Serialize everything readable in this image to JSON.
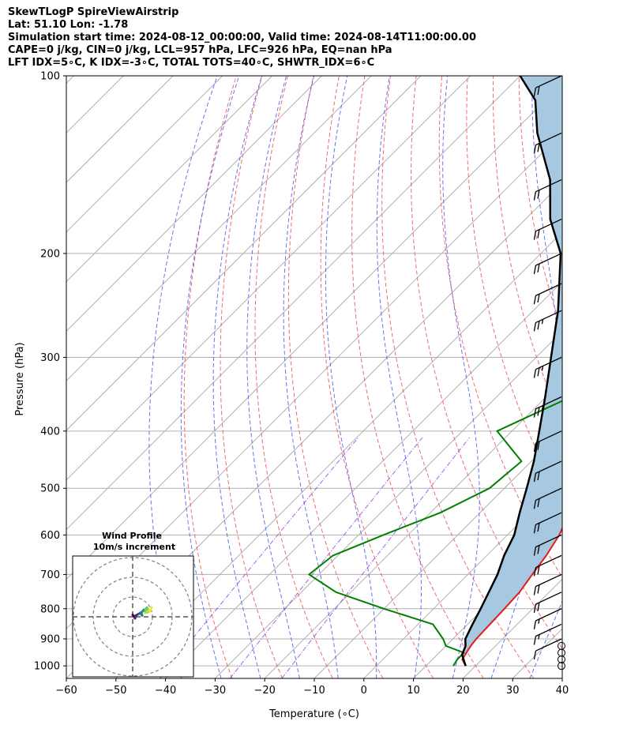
{
  "header": {
    "line1": "SkewTLogP SpireViewAirstrip",
    "line2": "Lat: 51.10   Lon: -1.78",
    "line3": "Simulation start time: 2024-08-12_00:00:00, Valid time: 2024-08-14T11:00:00.00",
    "line4": "CAPE=0 j/kg, CIN=0 j/kg, LCL=957 hPa, LFC=926 hPa, EQ=nan hPa",
    "line5": "LFT IDX=5∘C, K IDX=-3∘C, TOTAL TOTS=40∘C, SHWTR_IDX=6∘C"
  },
  "chart_data": {
    "type": "line",
    "title": "SkewTLogP SpireViewAirstrip",
    "xlabel": "Temperature (∘C)",
    "ylabel": "Pressure (hPa)",
    "xlim": [
      -60,
      40
    ],
    "ylim": [
      1050,
      100
    ],
    "yscale": "log",
    "x_ticks": [
      -60,
      -50,
      -40,
      -30,
      -20,
      -10,
      0,
      10,
      20,
      30,
      40
    ],
    "y_ticks": [
      100,
      200,
      300,
      400,
      500,
      600,
      700,
      800,
      900,
      1000
    ],
    "grid": true,
    "series": [
      {
        "name": "temperature",
        "color": "#e31a1c",
        "points": [
          [
            18,
            1000
          ],
          [
            16,
            975
          ],
          [
            15.5,
            950
          ],
          [
            15,
            925
          ],
          [
            14.7,
            900
          ],
          [
            14.5,
            850
          ],
          [
            14.3,
            800
          ],
          [
            14,
            750
          ],
          [
            13,
            700
          ],
          [
            12,
            650
          ],
          [
            10.5,
            600
          ],
          [
            8,
            550
          ],
          [
            5,
            500
          ],
          [
            2,
            450
          ],
          [
            -1,
            400
          ],
          [
            -4.3,
            350
          ],
          [
            -7.3,
            300
          ],
          [
            -9.5,
            250
          ],
          [
            -10.5,
            225
          ],
          [
            -12,
            200
          ],
          [
            -15,
            185
          ],
          [
            -16,
            175
          ],
          [
            -17,
            165
          ],
          [
            -19,
            150
          ],
          [
            -22,
            140
          ],
          [
            -27,
            125
          ],
          [
            -31,
            110
          ],
          [
            -34,
            100
          ]
        ]
      },
      {
        "name": "dewpoint",
        "color": "#008000",
        "points": [
          [
            15.5,
            1000
          ],
          [
            15,
            975
          ],
          [
            15,
            950
          ],
          [
            10,
            925
          ],
          [
            8,
            900
          ],
          [
            3,
            850
          ],
          [
            -10,
            800
          ],
          [
            -23,
            750
          ],
          [
            -32,
            700
          ],
          [
            -31,
            650
          ],
          [
            -25,
            600
          ],
          [
            -18,
            550
          ],
          [
            -13,
            500
          ],
          [
            -12,
            450
          ],
          [
            -23,
            400
          ],
          [
            -15,
            350
          ],
          [
            -19,
            300
          ],
          [
            -24,
            250
          ],
          [
            -29,
            225
          ],
          [
            -40,
            190
          ],
          [
            -45,
            170
          ],
          [
            -52,
            140
          ],
          [
            -58,
            120
          ],
          [
            -65,
            100
          ]
        ]
      },
      {
        "name": "parcel",
        "color": "#000000",
        "points": [
          [
            18,
            1000
          ],
          [
            15,
            957
          ],
          [
            14,
            926
          ],
          [
            12.5,
            900
          ],
          [
            11,
            850
          ],
          [
            9.5,
            800
          ],
          [
            7.8,
            750
          ],
          [
            6,
            700
          ],
          [
            3.5,
            650
          ],
          [
            1.4,
            600
          ],
          [
            -2,
            550
          ],
          [
            -5.5,
            500
          ],
          [
            -9.5,
            450
          ],
          [
            -14.5,
            400
          ],
          [
            -20.2,
            350
          ],
          [
            -27,
            300
          ],
          [
            -35,
            250
          ],
          [
            -46,
            200
          ],
          [
            -55,
            175
          ],
          [
            -63,
            150
          ],
          [
            -75,
            125
          ],
          [
            -82,
            110
          ],
          [
            -90,
            100
          ]
        ]
      }
    ],
    "cape_fill_color": "#a6c8e0",
    "reference_lines": {
      "isotherms": "grey solid",
      "dry_adiabats": "red dashed",
      "moist_adiabats": "blue dashed",
      "mixing_ratio": "purple dash-dot"
    },
    "wind_barbs": {
      "pressures": [
        1000,
        975,
        950,
        925,
        900,
        850,
        800,
        750,
        700,
        650,
        600,
        550,
        500,
        450,
        400,
        350,
        300,
        250,
        225,
        200,
        175,
        150,
        125,
        100
      ],
      "speeds_kt": [
        0,
        0,
        0,
        0,
        10,
        15,
        15,
        20,
        20,
        20,
        20,
        20,
        20,
        20,
        20,
        25,
        25,
        25,
        20,
        20,
        20,
        20,
        20,
        20
      ]
    },
    "inset": {
      "title": "Wind Profile",
      "subtitle": "10m/s increment",
      "rings": [
        10,
        20,
        30
      ]
    }
  }
}
